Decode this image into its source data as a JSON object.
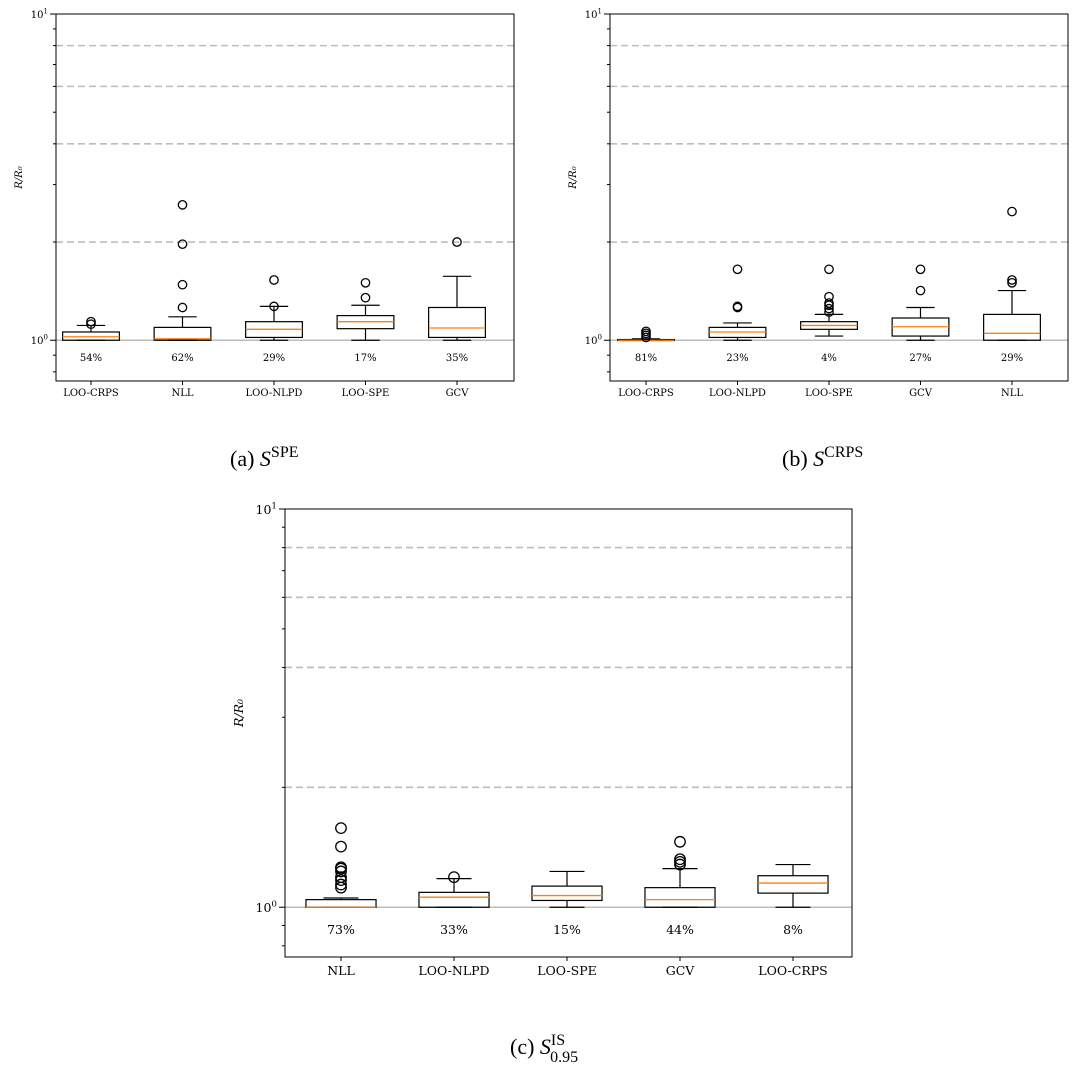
{
  "chart_data": [
    {
      "type": "box",
      "caption": {
        "prefix": "(a)",
        "symbol": "S",
        "sup": "SPE",
        "sub": ""
      },
      "ylabel": "R/R₀",
      "yscale": "log",
      "ylim": [
        0.75,
        10
      ],
      "yticks": [
        {
          "value": 1,
          "base": "10",
          "exp": "0"
        },
        {
          "value": 10,
          "base": "10",
          "exp": "1"
        }
      ],
      "reference_lines": [
        2,
        4,
        6,
        8
      ],
      "baseline": 1,
      "categories": [
        "LOO-CRPS",
        "NLL",
        "LOO-NLPD",
        "LOO-SPE",
        "GCV"
      ],
      "series": [
        {
          "category": "LOO-CRPS",
          "whislo": 1.0,
          "q1": 1.0,
          "median": 1.025,
          "q3": 1.06,
          "whishi": 1.11,
          "fliers": [
            1.12,
            1.14
          ],
          "pct": "54%"
        },
        {
          "category": "NLL",
          "whislo": 1.0,
          "q1": 1.0,
          "median": 1.01,
          "q3": 1.095,
          "whishi": 1.18,
          "fliers": [
            1.26,
            1.48,
            1.97,
            2.6
          ],
          "pct": "62%"
        },
        {
          "category": "LOO-NLPD",
          "whislo": 1.0,
          "q1": 1.02,
          "median": 1.08,
          "q3": 1.14,
          "whishi": 1.27,
          "fliers": [
            1.27,
            1.53
          ],
          "pct": "29%"
        },
        {
          "category": "LOO-SPE",
          "whislo": 1.0,
          "q1": 1.085,
          "median": 1.14,
          "q3": 1.19,
          "whishi": 1.28,
          "fliers": [
            1.35,
            1.5
          ],
          "pct": "17%"
        },
        {
          "category": "GCV",
          "whislo": 1.0,
          "q1": 1.02,
          "median": 1.09,
          "q3": 1.26,
          "whishi": 1.57,
          "fliers": [
            2.0
          ],
          "pct": "35%"
        }
      ]
    },
    {
      "type": "box",
      "caption": {
        "prefix": "(b)",
        "symbol": "S",
        "sup": "CRPS",
        "sub": ""
      },
      "ylabel": "R/R₀",
      "yscale": "log",
      "ylim": [
        0.75,
        10
      ],
      "yticks": [
        {
          "value": 1,
          "base": "10",
          "exp": "0"
        },
        {
          "value": 10,
          "base": "10",
          "exp": "1"
        }
      ],
      "reference_lines": [
        2,
        4,
        6,
        8
      ],
      "baseline": 1,
      "categories": [
        "LOO-CRPS",
        "LOO-NLPD",
        "LOO-SPE",
        "GCV",
        "NLL"
      ],
      "series": [
        {
          "category": "LOO-CRPS",
          "whislo": 1.0,
          "q1": 1.0,
          "median": 1.0,
          "q3": 1.005,
          "whishi": 1.01,
          "fliers": [
            1.02,
            1.035,
            1.05,
            1.065
          ],
          "pct": "81%"
        },
        {
          "category": "LOO-NLPD",
          "whislo": 1.0,
          "q1": 1.02,
          "median": 1.06,
          "q3": 1.095,
          "whishi": 1.13,
          "fliers": [
            1.26,
            1.27,
            1.65
          ],
          "pct": "23%"
        },
        {
          "category": "LOO-SPE",
          "whislo": 1.03,
          "q1": 1.08,
          "median": 1.11,
          "q3": 1.14,
          "whishi": 1.2,
          "fliers": [
            1.22,
            1.25,
            1.28,
            1.3,
            1.36,
            1.65
          ],
          "pct": "4%"
        },
        {
          "category": "GCV",
          "whislo": 1.0,
          "q1": 1.03,
          "median": 1.1,
          "q3": 1.17,
          "whishi": 1.26,
          "fliers": [
            1.42,
            1.65
          ],
          "pct": "27%"
        },
        {
          "category": "NLL",
          "whislo": 1.0,
          "q1": 1.0,
          "median": 1.05,
          "q3": 1.2,
          "whishi": 1.42,
          "fliers": [
            1.5,
            1.53,
            2.48
          ],
          "pct": "29%"
        }
      ]
    },
    {
      "type": "box",
      "caption": {
        "prefix": "(c)",
        "symbol": "S",
        "sup": "IS",
        "sub": "0.95"
      },
      "ylabel": "R/R₀",
      "yscale": "log",
      "ylim": [
        0.75,
        10
      ],
      "yticks": [
        {
          "value": 1,
          "base": "10",
          "exp": "0"
        },
        {
          "value": 10,
          "base": "10",
          "exp": "1"
        }
      ],
      "reference_lines": [
        2,
        4,
        6,
        8
      ],
      "baseline": 1,
      "categories": [
        "NLL",
        "LOO-NLPD",
        "LOO-SPE",
        "GCV",
        "LOO-CRPS"
      ],
      "series": [
        {
          "category": "NLL",
          "whislo": 1.0,
          "q1": 1.0,
          "median": 1.0,
          "q3": 1.045,
          "whishi": 1.055,
          "fliers": [
            1.12,
            1.14,
            1.17,
            1.19,
            1.23,
            1.25,
            1.26,
            1.42,
            1.58
          ],
          "pct": "73%"
        },
        {
          "category": "LOO-NLPD",
          "whislo": 1.0,
          "q1": 1.0,
          "median": 1.06,
          "q3": 1.09,
          "whishi": 1.18,
          "fliers": [
            1.19
          ],
          "pct": "33%"
        },
        {
          "category": "LOO-SPE",
          "whislo": 1.0,
          "q1": 1.04,
          "median": 1.07,
          "q3": 1.13,
          "whishi": 1.23,
          "fliers": [],
          "pct": "15%"
        },
        {
          "category": "GCV",
          "whislo": 1.0,
          "q1": 1.0,
          "median": 1.045,
          "q3": 1.12,
          "whishi": 1.25,
          "fliers": [
            1.28,
            1.3,
            1.32,
            1.46
          ],
          "pct": "44%"
        },
        {
          "category": "LOO-CRPS",
          "whislo": 1.0,
          "q1": 1.085,
          "median": 1.15,
          "q3": 1.2,
          "whishi": 1.28,
          "fliers": [],
          "pct": "8%"
        }
      ]
    }
  ]
}
